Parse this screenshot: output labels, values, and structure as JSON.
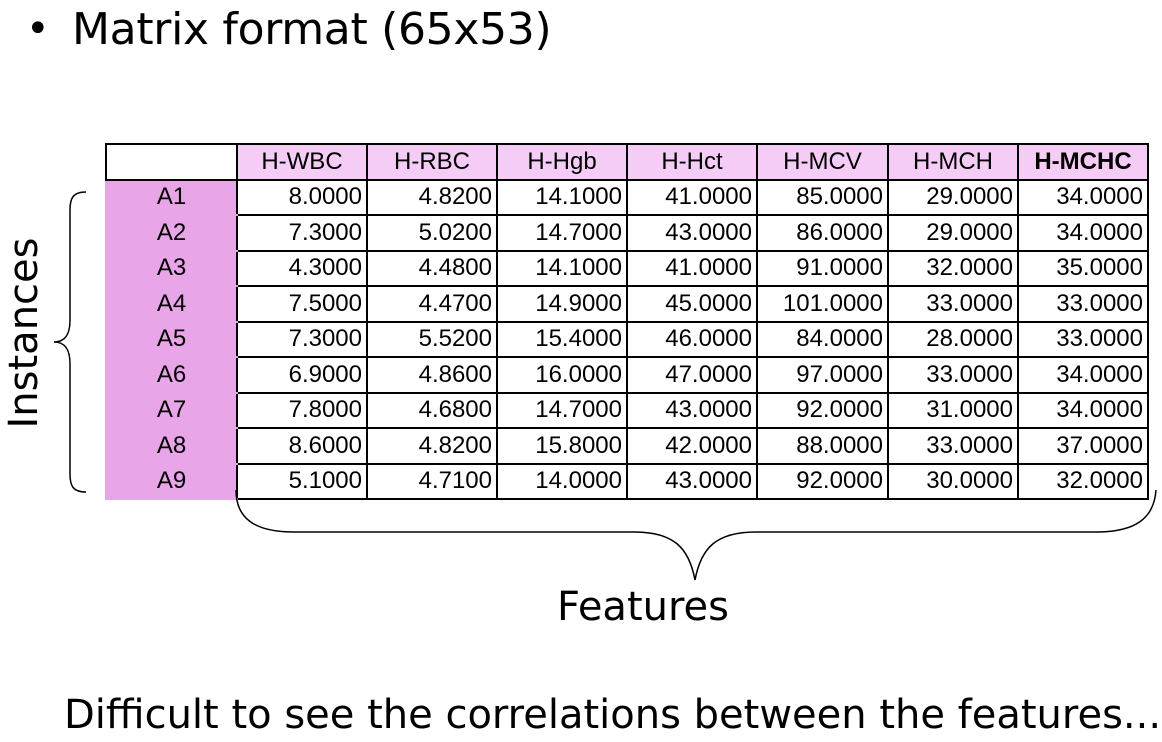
{
  "slide": {
    "bullet_title": "Matrix format (65x53)",
    "row_axis_label": "Instances",
    "column_axis_label": "Features",
    "footer_text": "Difficult to see the correlations between the features..."
  },
  "table": {
    "headers": [
      "H-WBC",
      "H-RBC",
      "H-Hgb",
      "H-Hct",
      "H-MCV",
      "H-MCH",
      "H-MCHC"
    ],
    "rows": [
      {
        "label": "A1",
        "values": [
          "8.0000",
          "4.8200",
          "14.1000",
          "41.0000",
          "85.0000",
          "29.0000",
          "34.0000"
        ]
      },
      {
        "label": "A2",
        "values": [
          "7.3000",
          "5.0200",
          "14.7000",
          "43.0000",
          "86.0000",
          "29.0000",
          "34.0000"
        ]
      },
      {
        "label": "A3",
        "values": [
          "4.3000",
          "4.4800",
          "14.1000",
          "41.0000",
          "91.0000",
          "32.0000",
          "35.0000"
        ]
      },
      {
        "label": "A4",
        "values": [
          "7.5000",
          "4.4700",
          "14.9000",
          "45.0000",
          "101.0000",
          "33.0000",
          "33.0000"
        ]
      },
      {
        "label": "A5",
        "values": [
          "7.3000",
          "5.5200",
          "15.4000",
          "46.0000",
          "84.0000",
          "28.0000",
          "33.0000"
        ]
      },
      {
        "label": "A6",
        "values": [
          "6.9000",
          "4.8600",
          "16.0000",
          "47.0000",
          "97.0000",
          "33.0000",
          "34.0000"
        ]
      },
      {
        "label": "A7",
        "values": [
          "7.8000",
          "4.6800",
          "14.7000",
          "43.0000",
          "92.0000",
          "31.0000",
          "34.0000"
        ]
      },
      {
        "label": "A8",
        "values": [
          "8.6000",
          "4.8200",
          "15.8000",
          "42.0000",
          "88.0000",
          "33.0000",
          "37.0000"
        ]
      },
      {
        "label": "A9",
        "values": [
          "5.1000",
          "4.7100",
          "14.0000",
          "43.0000",
          "92.0000",
          "30.0000",
          "32.0000"
        ]
      }
    ]
  },
  "colors": {
    "header_fill": "#f5ccf5",
    "row_label_fill": "#e8a6e8",
    "grid_lines": "#000000"
  }
}
